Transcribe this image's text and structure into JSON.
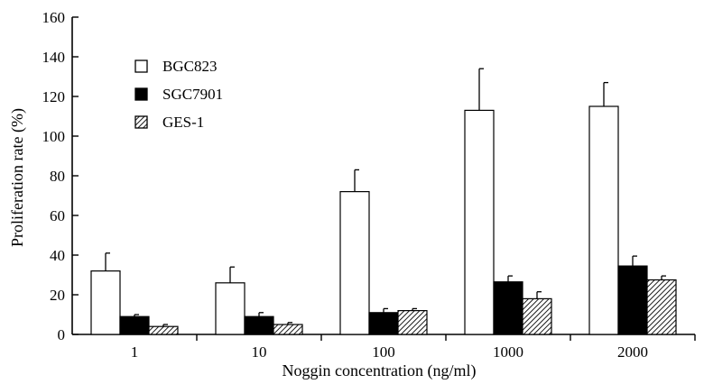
{
  "chart_data": {
    "type": "bar",
    "title": "",
    "xlabel": "Noggin concentration (ng/ml)",
    "ylabel": "Proliferation rate (%)",
    "ylim": [
      0,
      160
    ],
    "yticks": [
      0,
      20,
      40,
      60,
      80,
      100,
      120,
      140,
      160
    ],
    "categories": [
      "1",
      "10",
      "100",
      "1000",
      "2000"
    ],
    "legend_position": "top-left",
    "grid": false,
    "series": [
      {
        "name": "BGC823",
        "fill": "white",
        "values": [
          32,
          26,
          72,
          113,
          115
        ],
        "errors": [
          9,
          8,
          11,
          21,
          12
        ]
      },
      {
        "name": "SGC7901",
        "fill": "black",
        "values": [
          9,
          9,
          11,
          26.5,
          34.5
        ],
        "errors": [
          1,
          2,
          2,
          3,
          5
        ]
      },
      {
        "name": "GES-1",
        "fill": "hatched",
        "values": [
          4,
          5,
          12,
          18,
          27.5
        ],
        "errors": [
          1,
          1,
          1,
          3.5,
          2
        ]
      }
    ]
  }
}
